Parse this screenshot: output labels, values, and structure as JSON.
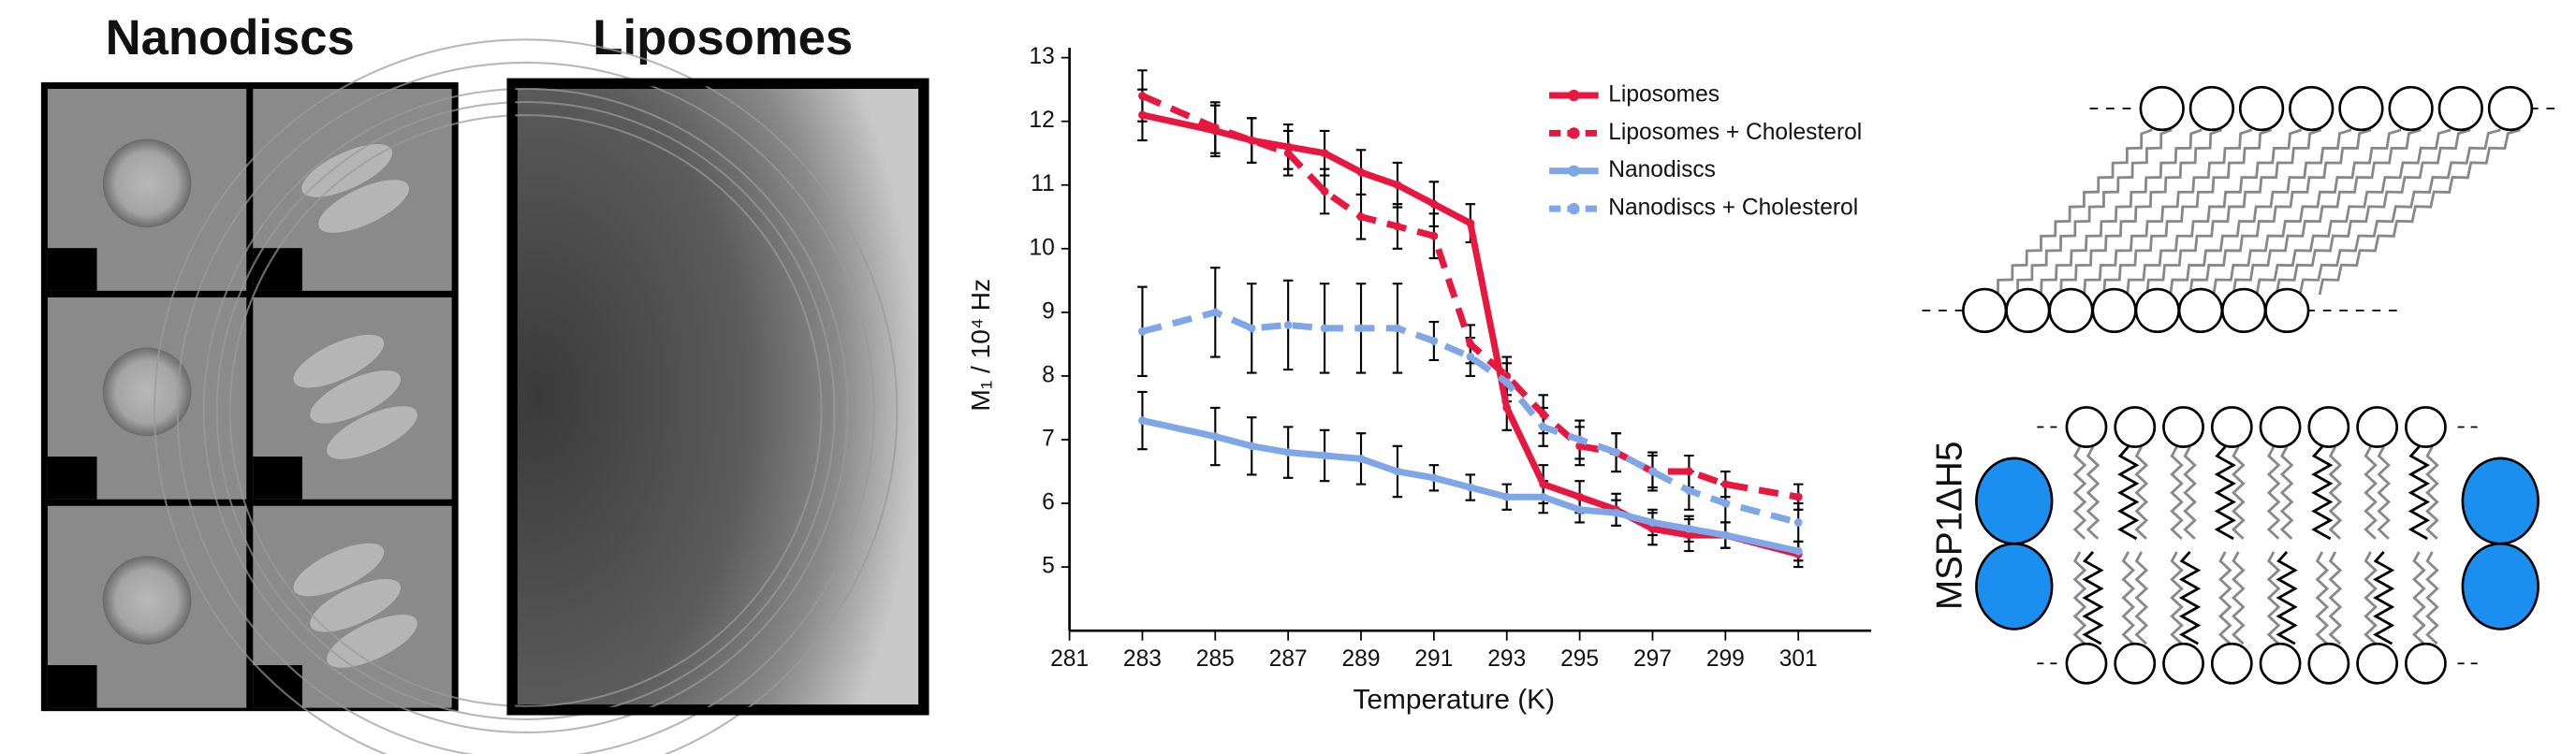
{
  "panels": {
    "nanodiscs_title": "Nanodiscs",
    "liposomes_title": "Liposomes"
  },
  "diagram": {
    "protein_label": "MSP1ΔH5"
  },
  "chart_data": {
    "type": "line",
    "xlabel": "Temperature (K)",
    "ylabel": "M₁ / 10⁴ Hz",
    "x": [
      283,
      285,
      286,
      287,
      288,
      289,
      290,
      291,
      292,
      293,
      294,
      295,
      296,
      297,
      298,
      299,
      301
    ],
    "series": [
      {
        "name": "Liposomes",
        "color": "#e8173f",
        "line_style": "solid",
        "values": [
          12.1,
          11.85,
          11.7,
          11.6,
          11.5,
          11.2,
          11.0,
          10.7,
          10.4,
          7.5,
          6.3,
          6.1,
          5.9,
          5.6,
          5.5,
          5.5,
          5.2
        ],
        "errors": [
          0.4,
          0.4,
          0.35,
          0.35,
          0.35,
          0.35,
          0.35,
          0.35,
          0.3,
          0.35,
          0.3,
          0.25,
          0.25,
          0.25,
          0.25,
          0.2,
          0.2
        ]
      },
      {
        "name": "Liposomes + Cholesterol",
        "color": "#e8173f",
        "line_style": "dashed",
        "values": [
          12.4,
          11.9,
          11.7,
          11.5,
          10.9,
          10.5,
          10.35,
          10.2,
          8.5,
          8.0,
          7.4,
          6.9,
          6.8,
          6.5,
          6.5,
          6.3,
          6.1
        ],
        "errors": [
          0.4,
          0.4,
          0.35,
          0.35,
          0.35,
          0.35,
          0.35,
          0.35,
          0.3,
          0.3,
          0.3,
          0.3,
          0.3,
          0.25,
          0.25,
          0.2,
          0.2
        ]
      },
      {
        "name": "Nanodiscs",
        "color": "#7fa7e8",
        "line_style": "solid",
        "values": [
          7.3,
          7.05,
          6.9,
          6.8,
          6.75,
          6.7,
          6.5,
          6.4,
          6.25,
          6.1,
          6.1,
          5.9,
          5.85,
          5.7,
          5.6,
          5.5,
          5.25
        ],
        "errors": [
          0.45,
          0.45,
          0.45,
          0.4,
          0.4,
          0.4,
          0.4,
          0.2,
          0.2,
          0.2,
          0.25,
          0.2,
          0.2,
          0.2,
          0.2,
          0.2,
          0.15
        ]
      },
      {
        "name": "Nanodiscs + Cholesterol",
        "color": "#7fa7e8",
        "line_style": "dashed",
        "values": [
          8.7,
          9.0,
          8.75,
          8.8,
          8.75,
          8.75,
          8.75,
          8.55,
          8.3,
          7.9,
          7.2,
          7.0,
          6.8,
          6.5,
          6.2,
          6.0,
          5.7
        ],
        "errors": [
          0.7,
          0.7,
          0.7,
          0.7,
          0.7,
          0.7,
          0.7,
          0.3,
          0.3,
          0.3,
          0.3,
          0.3,
          0.3,
          0.3,
          0.3,
          0.3,
          0.3
        ]
      }
    ],
    "xlim": [
      281,
      303
    ],
    "xticks": [
      281,
      283,
      285,
      287,
      289,
      291,
      293,
      295,
      297,
      299,
      301
    ],
    "ylim": [
      4,
      13
    ],
    "yticks": [
      5,
      6,
      7,
      8,
      9,
      10,
      11,
      12,
      13
    ],
    "legend": "upper right"
  }
}
